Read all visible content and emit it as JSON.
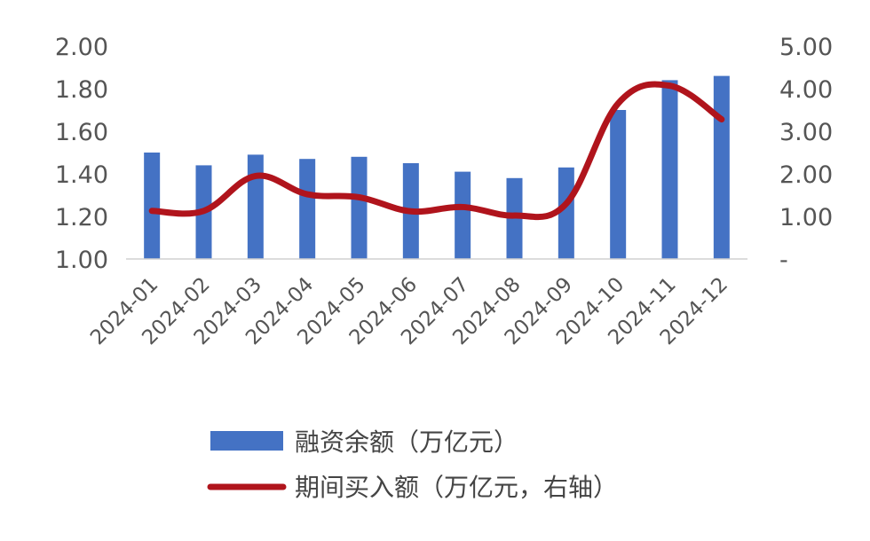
{
  "chart_data": {
    "type": "bar+line",
    "categories": [
      "2024-01",
      "2024-02",
      "2024-03",
      "2024-04",
      "2024-05",
      "2024-06",
      "2024-07",
      "2024-08",
      "2024-09",
      "2024-10",
      "2024-11",
      "2024-12"
    ],
    "series": [
      {
        "name": "融资余额（万亿元）",
        "type": "bar",
        "axis": "left",
        "color": "#4472C4",
        "values": [
          1.5,
          1.44,
          1.49,
          1.47,
          1.48,
          1.45,
          1.41,
          1.38,
          1.43,
          1.7,
          1.84,
          1.86
        ]
      },
      {
        "name": "期间买入额（万亿元，右轴）",
        "type": "line",
        "axis": "right",
        "color": "#B0141C",
        "values": [
          1.13,
          1.13,
          1.95,
          1.52,
          1.45,
          1.12,
          1.22,
          1.02,
          1.3,
          3.65,
          4.07,
          3.28
        ]
      }
    ],
    "left_axis": {
      "ylim": [
        1.0,
        2.0
      ],
      "ticks": [
        1.0,
        1.2,
        1.4,
        1.6,
        1.8,
        2.0
      ],
      "tick_labels": [
        "1.00",
        "1.20",
        "1.40",
        "1.60",
        "1.80",
        "2.00"
      ]
    },
    "right_axis": {
      "ylim": [
        0,
        5
      ],
      "ticks": [
        0,
        1,
        2,
        3,
        4,
        5
      ],
      "tick_labels": [
        "-",
        "1.00",
        "2.00",
        "3.00",
        "4.00",
        "5.00"
      ]
    },
    "grid": false,
    "legend_position": "bottom"
  }
}
